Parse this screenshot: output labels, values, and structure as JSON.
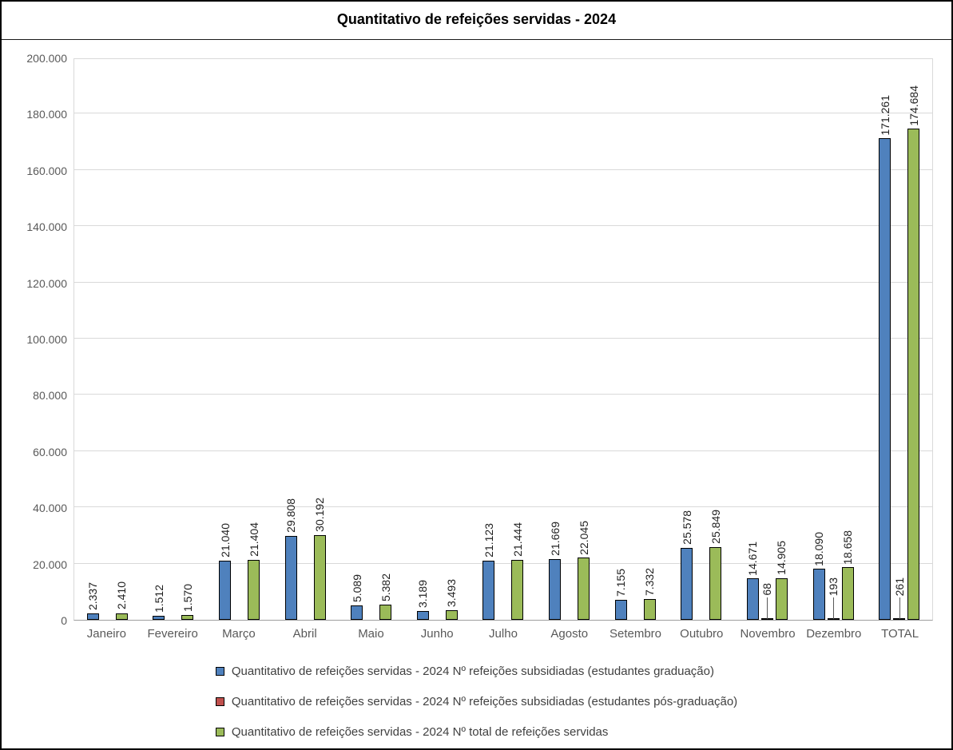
{
  "chart_data": {
    "type": "bar",
    "title": "Quantitativo de refeições servidas - 2024",
    "categories": [
      "Janeiro",
      "Fevereiro",
      "Março",
      "Abril",
      "Maio",
      "Junho",
      "Julho",
      "Agosto",
      "Setembro",
      "Outubro",
      "Novembro",
      "Dezembro",
      "TOTAL"
    ],
    "series": [
      {
        "name": "Quantitativo de refeições servidas - 2024 Nº refeições subsidiadas (estudantes graduação)",
        "color": "#4f81bd",
        "values": [
          2337,
          1512,
          21040,
          29808,
          5089,
          3189,
          21123,
          21669,
          7155,
          25578,
          14671,
          18090,
          171261
        ],
        "labels": [
          "2.337",
          "1.512",
          "21.040",
          "29.808",
          "5.089",
          "3.189",
          "21.123",
          "21.669",
          "7.155",
          "25.578",
          "14.671",
          "18.090",
          "171.261"
        ]
      },
      {
        "name": "Quantitativo de refeições servidas - 2024 Nº refeições subsidiadas (estudantes pós-graduação)",
        "color": "#c0504d",
        "values": [
          0,
          0,
          0,
          0,
          0,
          0,
          0,
          0,
          0,
          0,
          68,
          193,
          261
        ],
        "labels": [
          "",
          "",
          "",
          "",
          "",
          "",
          "",
          "",
          "",
          "",
          "68",
          "193",
          "261"
        ]
      },
      {
        "name": "Quantitativo de refeições servidas - 2024 Nº total de refeições servidas",
        "color": "#9bbb59",
        "values": [
          2410,
          1570,
          21404,
          30192,
          5382,
          3493,
          21444,
          22045,
          7332,
          25849,
          14905,
          18658,
          174684
        ],
        "labels": [
          "2.410",
          "1.570",
          "21.404",
          "30.192",
          "5.382",
          "3.493",
          "21.444",
          "22.045",
          "7.332",
          "25.849",
          "14.905",
          "18.658",
          "174.684"
        ]
      }
    ],
    "ylim": [
      0,
      200000
    ],
    "ytick_step": 20000,
    "ytick_labels": [
      "0",
      "20.000",
      "40.000",
      "60.000",
      "80.000",
      "100.000",
      "120.000",
      "140.000",
      "160.000",
      "180.000",
      "200.000"
    ],
    "grid": true,
    "legend_position": "bottom"
  }
}
